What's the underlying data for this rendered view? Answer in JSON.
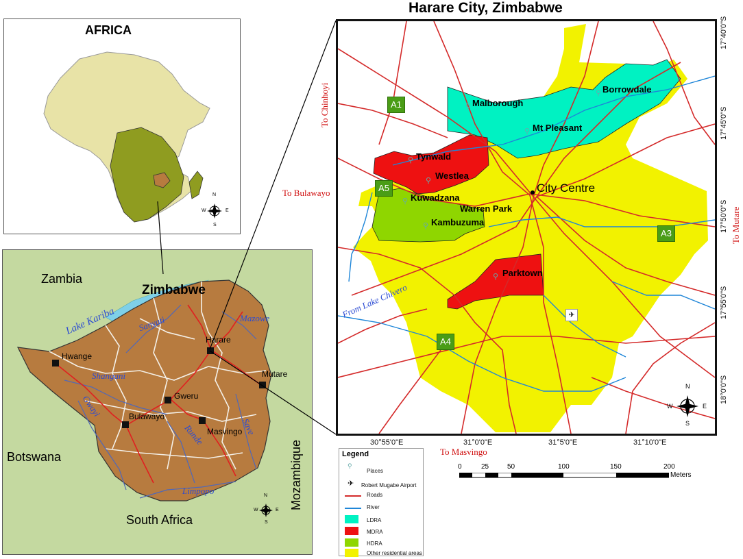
{
  "africa": {
    "title": "AFRICA"
  },
  "zimbabwe_map": {
    "title": "Zimbabwe",
    "countries": [
      "Zambia",
      "Botswana",
      "South Africa",
      "Mozambique"
    ],
    "lake": "Lake Kariba",
    "rivers": [
      "Sanyati",
      "Mazowe",
      "Shangani",
      "Gwayi",
      "Runde",
      "Save",
      "Limpopo"
    ],
    "cities": [
      "Hwange",
      "Harare",
      "Gweru",
      "Mutare",
      "Bulawayo",
      "Masvingo"
    ]
  },
  "harare_map": {
    "title": "Harare City, Zimbabwe",
    "places": [
      "Borrowdale",
      "Malborough",
      "Mt Pleasant",
      "Tynwald",
      "Westlea",
      "City Centre",
      "Kuwadzana",
      "Warren Park",
      "Kambuzuma",
      "Parktown"
    ],
    "zones": [
      "A1",
      "A5",
      "A3",
      "A4"
    ],
    "directions": [
      "To Chinhoyi",
      "To Bulawayo",
      "To Mutare",
      "To Masvingo"
    ],
    "river_label": "From Lake Chivero",
    "lat_labels": [
      "17°40'0\"S",
      "17°45'0\"S",
      "17°50'0\"S",
      "17°55'0\"S",
      "18°0'0\"S"
    ],
    "lon_labels": [
      "30°55'0\"E",
      "31°0'0\"E",
      "31°5'0\"E",
      "31°10'0\"E"
    ]
  },
  "compass": {
    "n": "N",
    "s": "S",
    "e": "E",
    "w": "W"
  },
  "scale_bar": {
    "ticks": [
      "0",
      "25",
      "50",
      "100",
      "150",
      "200"
    ],
    "unit": "Meters"
  },
  "legend": {
    "title": "Legend",
    "items": [
      {
        "label": "Places",
        "icon": "place-marker-icon"
      },
      {
        "label": "Robert Mugabe Airport",
        "icon": "airplane-icon"
      },
      {
        "label": "Roads",
        "color": "#d42a2a"
      },
      {
        "label": "River",
        "color": "#1f86d8"
      },
      {
        "label": "LDRA",
        "color": "#00f2c2"
      },
      {
        "label": "MDRA",
        "color": "#ee1111"
      },
      {
        "label": "HDRA",
        "color": "#8fd600"
      },
      {
        "label": "Other residential areas",
        "color": "#f2f200"
      }
    ]
  },
  "colors": {
    "africa_land": "#e8e3a7",
    "southern_africa": "#8f9c20",
    "zimbabwe": "#b77b3f",
    "zim_bg": "#c4d9a0",
    "road": "#d42a2a",
    "river": "#1f86d8",
    "ldra": "#00f2c2",
    "mdra": "#ee1111",
    "hdra": "#8fd600",
    "other": "#f2f200"
  }
}
